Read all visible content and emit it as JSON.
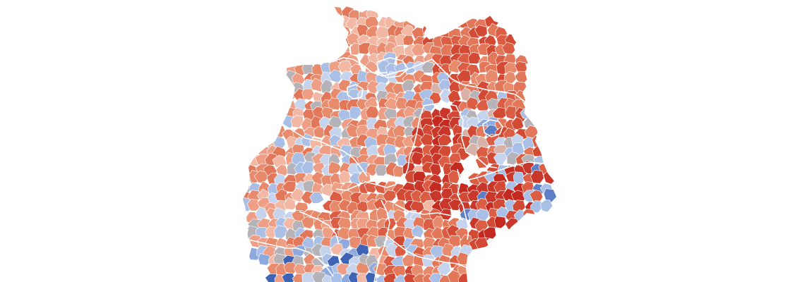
{
  "map": {
    "country": "",
    "palette": {
      "red_1": "#f2b8a4",
      "red_2": "#ee9e85",
      "red_3": "#e88a6c",
      "red_4": "#e3775a",
      "red_5": "#db5e44",
      "red_6": "#d24a34",
      "red_7": "#c9362a",
      "red_8": "#c42a1f",
      "blue_1": "#c5d3ec",
      "blue_2": "#aabfe6",
      "blue_3": "#8ea9dd",
      "blue_4": "#5d7fc6",
      "blue_5": "#3f63b5",
      "neutral": "#b5b2b8",
      "neutral_warm": "#d8b2a8"
    },
    "regions": [
      {
        "id": "schleswig-holstein",
        "shade": "red_2"
      },
      {
        "id": "hamburg",
        "shade": "blue_2"
      },
      {
        "id": "mecklenburg-vorpommern",
        "shade": "red_6"
      },
      {
        "id": "lower-saxony",
        "shade": "red_3"
      },
      {
        "id": "bremen",
        "shade": "blue_1"
      },
      {
        "id": "berlin",
        "shade": "blue_4"
      },
      {
        "id": "brandenburg",
        "shade": "red_6"
      },
      {
        "id": "saxony-anhalt",
        "shade": "red_7"
      },
      {
        "id": "north-rhine-westphalia",
        "shade": "red_2"
      },
      {
        "id": "hesse",
        "shade": "red_4"
      },
      {
        "id": "thuringia",
        "shade": "red_7"
      },
      {
        "id": "saxony",
        "shade": "red_8"
      },
      {
        "id": "rhineland-palatinate",
        "shade": "red_3"
      },
      {
        "id": "saarland",
        "shade": "blue_2"
      },
      {
        "id": "baden-wuerttemberg",
        "shade": "red_3"
      },
      {
        "id": "bavaria",
        "shade": "red_5"
      }
    ]
  }
}
